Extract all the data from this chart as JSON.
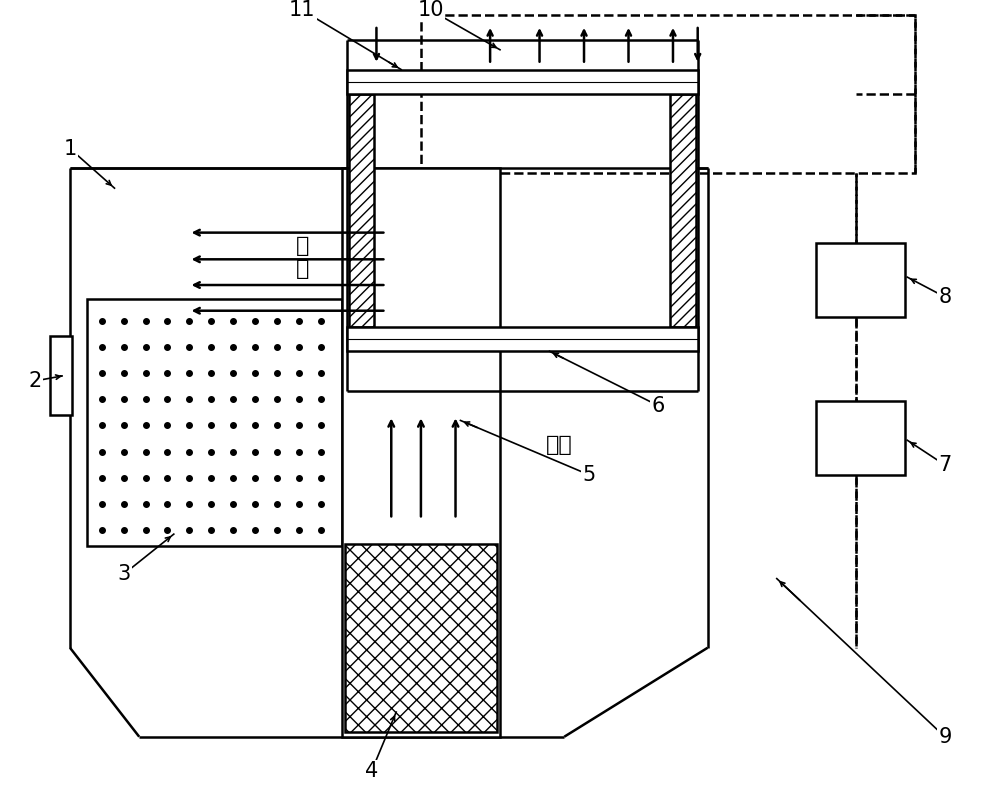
{
  "bg_color": "#ffffff",
  "line_color": "#000000",
  "fig_width": 10.0,
  "fig_height": 8.01,
  "cold_air_text": "冷\n气",
  "hot_air_text": "热气"
}
